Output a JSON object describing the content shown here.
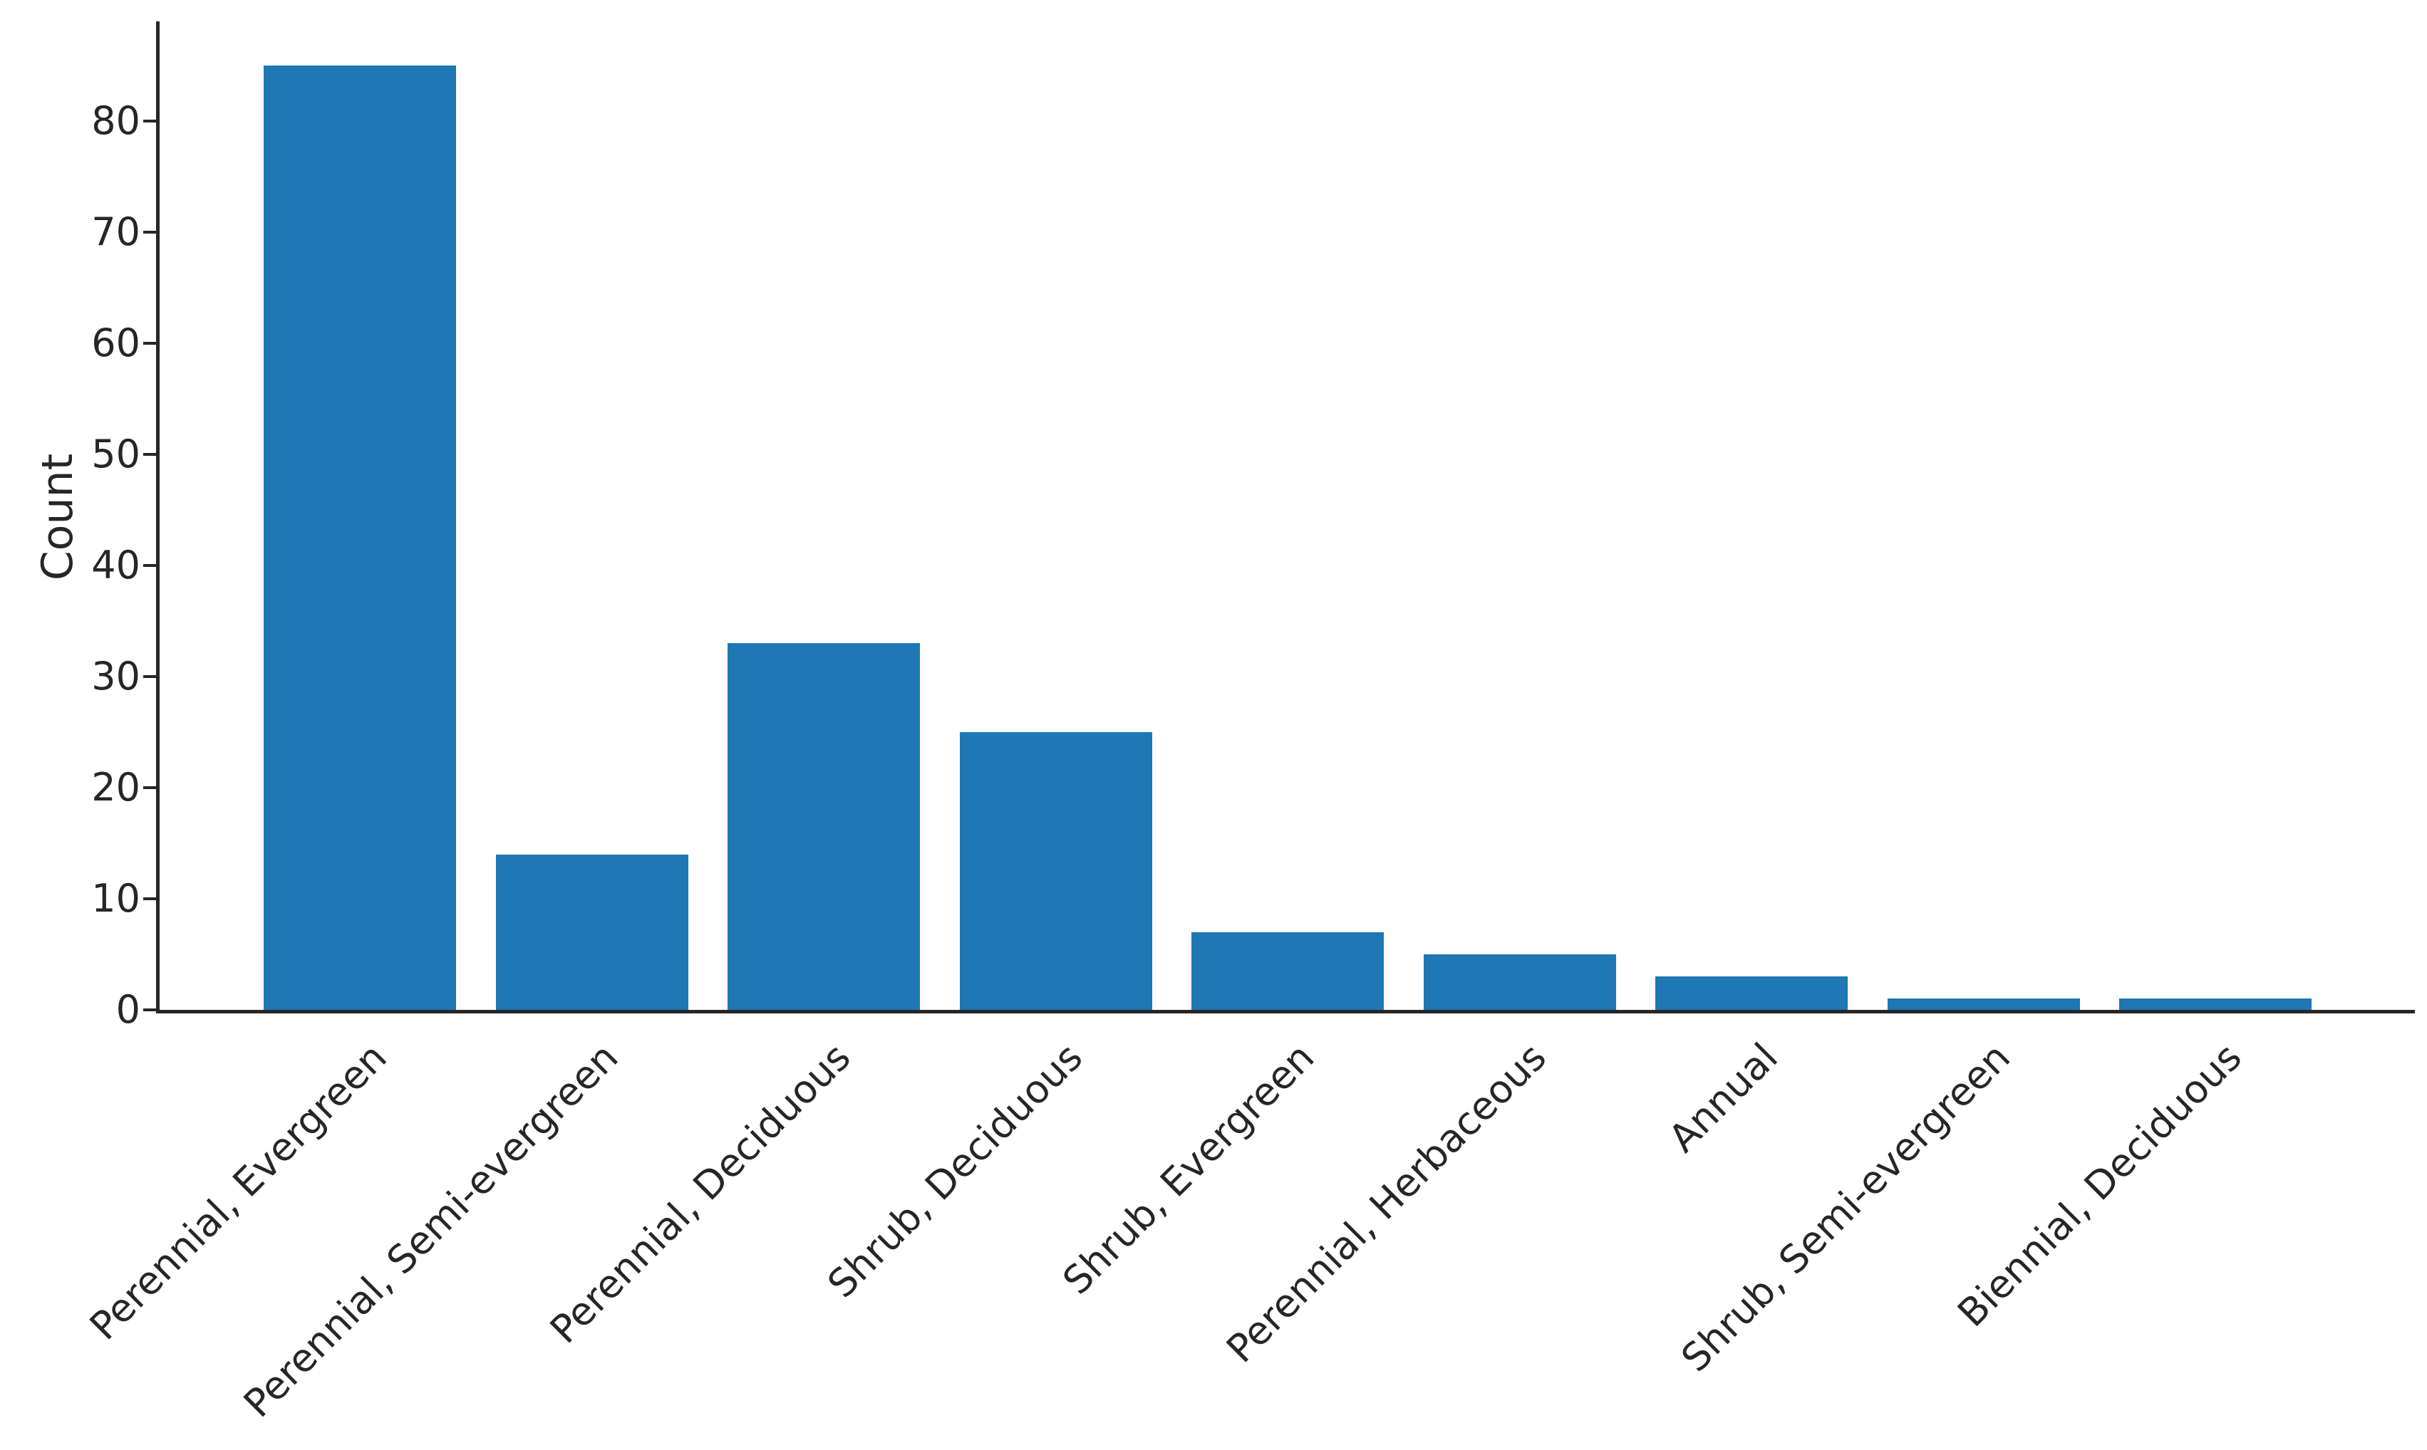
{
  "chart_data": {
    "type": "bar",
    "title": "",
    "xlabel": "",
    "ylabel": "Count",
    "categories": [
      "Perennial, Evergreen",
      "Perennial, Semi-evergreen",
      "Perennial, Deciduous",
      "Shrub, Deciduous",
      "Shrub, Evergreen",
      "Perennial, Herbaceous",
      "Annual",
      "Shrub, Semi-evergreen",
      "Biennial, Deciduous"
    ],
    "values": [
      85,
      14,
      33,
      25,
      7,
      5,
      3,
      1,
      1
    ],
    "yticks": [
      0,
      10,
      20,
      30,
      40,
      50,
      60,
      70,
      80
    ],
    "ylim": [
      0,
      89
    ],
    "bar_color": "#1f77b4",
    "axis_color": "#262626",
    "grid": false,
    "legend_position": "none",
    "x_tick_label_rotation_deg": 45,
    "bar_width_fraction": 0.8
  }
}
